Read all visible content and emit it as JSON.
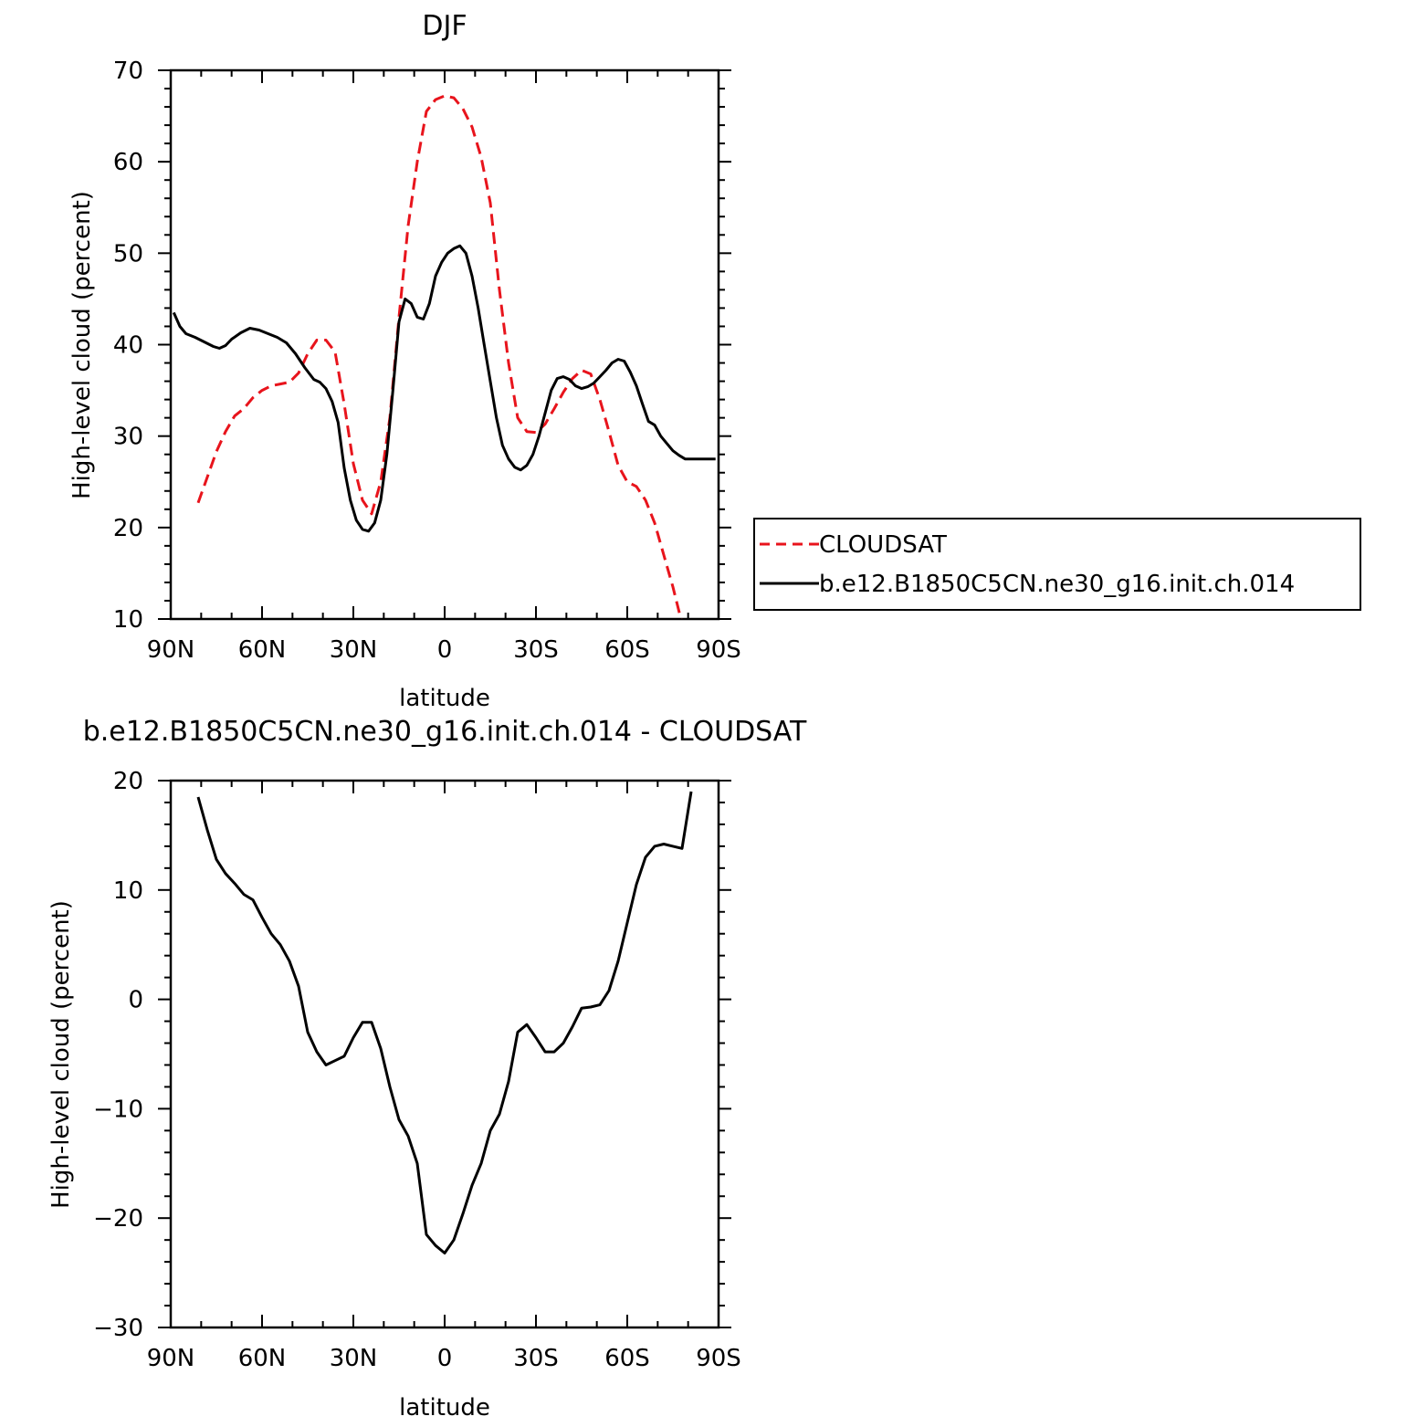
{
  "chart_data": [
    {
      "type": "line",
      "title": "DJF",
      "xlabel": "latitude",
      "ylabel": "High-level cloud (percent)",
      "xlim": [
        90,
        -90
      ],
      "ylim": [
        10,
        70
      ],
      "x_ticks": [
        90,
        60,
        30,
        0,
        -30,
        -60,
        -90
      ],
      "x_tick_labels": [
        "90N",
        "60N",
        "30N",
        "0",
        "30S",
        "60S",
        "90S"
      ],
      "y_ticks": [
        10,
        20,
        30,
        40,
        50,
        60,
        70
      ],
      "y_tick_labels": [
        "10",
        "20",
        "30",
        "40",
        "50",
        "60",
        "70"
      ],
      "legend_position": "right",
      "series": [
        {
          "name": "CLOUDSAT",
          "color": "#e8141c",
          "dash": "dashed",
          "x": [
            81,
            78,
            75,
            72,
            69,
            66,
            63,
            60,
            57,
            54,
            51,
            48,
            45,
            42,
            39,
            36,
            33,
            30,
            27,
            24,
            21,
            18,
            15,
            12,
            9,
            6,
            3,
            0,
            -3,
            -6,
            -9,
            -12,
            -15,
            -18,
            -21,
            -24,
            -27,
            -30,
            -33,
            -36,
            -39,
            -42,
            -45,
            -48,
            -51,
            -54,
            -57,
            -60,
            -63,
            -66,
            -69,
            -72,
            -75,
            -78,
            -81
          ],
          "y": [
            22.7,
            25.5,
            28.3,
            30.5,
            32.2,
            33.0,
            34.2,
            35.0,
            35.5,
            35.7,
            35.9,
            36.9,
            39.0,
            40.5,
            40.5,
            39.2,
            33.5,
            27.0,
            23.0,
            21.5,
            25.0,
            32.0,
            43.0,
            53.0,
            60.0,
            65.5,
            66.8,
            67.2,
            67.0,
            65.8,
            63.8,
            60.5,
            55.5,
            46.0,
            38.0,
            32.0,
            30.5,
            30.4,
            31.3,
            33.0,
            34.8,
            36.3,
            37.2,
            36.8,
            34.0,
            30.5,
            26.8,
            25.0,
            24.5,
            23.0,
            20.5,
            17.0,
            13.5,
            9.5,
            6.0
          ]
        },
        {
          "name": "b.e12.B1850C5CN.ne30_g16.init.ch.014",
          "color": "#000000",
          "dash": "solid",
          "x": [
            89,
            87,
            85,
            82,
            79,
            76,
            74,
            72,
            70,
            67,
            64,
            61,
            58,
            55,
            52,
            49,
            46,
            43,
            41,
            39,
            37,
            35,
            33,
            31,
            29,
            27,
            25,
            23,
            21,
            19,
            17,
            15,
            13,
            11,
            9,
            7,
            5,
            3,
            1,
            -1,
            -3,
            -5,
            -7,
            -9,
            -11,
            -13,
            -15,
            -17,
            -19,
            -21,
            -23,
            -25,
            -27,
            -29,
            -31,
            -33,
            -35,
            -37,
            -39,
            -41,
            -43,
            -45,
            -47,
            -49,
            -51,
            -53,
            -55,
            -57,
            -59,
            -61,
            -63,
            -65,
            -67,
            -69,
            -71,
            -73,
            -75,
            -77,
            -79,
            -81,
            -83,
            -85,
            -87,
            -89
          ],
          "y": [
            43.5,
            42.0,
            41.2,
            40.8,
            40.3,
            39.8,
            39.6,
            39.9,
            40.6,
            41.3,
            41.8,
            41.6,
            41.2,
            40.8,
            40.2,
            39.0,
            37.5,
            36.2,
            35.9,
            35.2,
            33.8,
            31.5,
            26.5,
            23.0,
            20.8,
            19.8,
            19.6,
            20.5,
            23.0,
            28.0,
            35.0,
            42.5,
            45.0,
            44.5,
            43.0,
            42.8,
            44.5,
            47.5,
            49.0,
            50.0,
            50.5,
            50.8,
            50.0,
            47.5,
            44.0,
            40.0,
            36.0,
            32.0,
            29.0,
            27.5,
            26.6,
            26.3,
            26.8,
            28.0,
            30.0,
            32.5,
            35.0,
            36.3,
            36.5,
            36.2,
            35.5,
            35.2,
            35.4,
            35.8,
            36.5,
            37.2,
            38.0,
            38.4,
            38.2,
            37.0,
            35.5,
            33.5,
            31.6,
            31.2,
            30.0,
            29.2,
            28.4,
            27.9,
            27.5,
            27.5,
            27.5,
            27.5,
            27.5,
            27.5
          ]
        }
      ]
    },
    {
      "type": "line",
      "title": "b.e12.B1850C5CN.ne30_g16.init.ch.014 - CLOUDSAT",
      "xlabel": "latitude",
      "ylabel": "High-level cloud (percent)",
      "xlim": [
        90,
        -90
      ],
      "ylim": [
        -30,
        20
      ],
      "x_ticks": [
        90,
        60,
        30,
        0,
        -30,
        -60,
        -90
      ],
      "x_tick_labels": [
        "90N",
        "60N",
        "30N",
        "0",
        "30S",
        "60S",
        "90S"
      ],
      "y_ticks": [
        -30,
        -20,
        -10,
        0,
        10,
        20
      ],
      "y_tick_labels": [
        "−30",
        "−20",
        "−10",
        "0",
        "10",
        "20"
      ],
      "series": [
        {
          "color": "#000000",
          "dash": "solid",
          "x": [
            81,
            78,
            75,
            72,
            69,
            66,
            63,
            60,
            57,
            54,
            51,
            48,
            45,
            42,
            39,
            36,
            33,
            30,
            27,
            24,
            21,
            18,
            15,
            12,
            9,
            6,
            3,
            0,
            -3,
            -6,
            -9,
            -12,
            -15,
            -18,
            -21,
            -24,
            -27,
            -30,
            -33,
            -36,
            -39,
            -42,
            -45,
            -48,
            -51,
            -54,
            -57,
            -60,
            -63,
            -66,
            -69,
            -72,
            -75,
            -78,
            -81
          ],
          "y": [
            18.5,
            15.5,
            12.8,
            11.5,
            10.6,
            9.6,
            9.1,
            7.5,
            6.0,
            5.0,
            3.5,
            1.2,
            -3.0,
            -4.8,
            -6.0,
            -5.6,
            -5.2,
            -3.5,
            -2.1,
            -2.1,
            -4.5,
            -8.0,
            -11.0,
            -12.5,
            -15.0,
            -21.5,
            -22.5,
            -23.2,
            -22.0,
            -19.6,
            -17.0,
            -15.0,
            -12.0,
            -10.5,
            -7.5,
            -3.0,
            -2.3,
            -3.5,
            -4.8,
            -4.8,
            -4.0,
            -2.5,
            -0.8,
            -0.7,
            -0.5,
            0.8,
            3.5,
            7.0,
            10.5,
            13.0,
            14.0,
            14.2,
            14.0,
            13.8,
            19.0
          ]
        }
      ]
    }
  ]
}
